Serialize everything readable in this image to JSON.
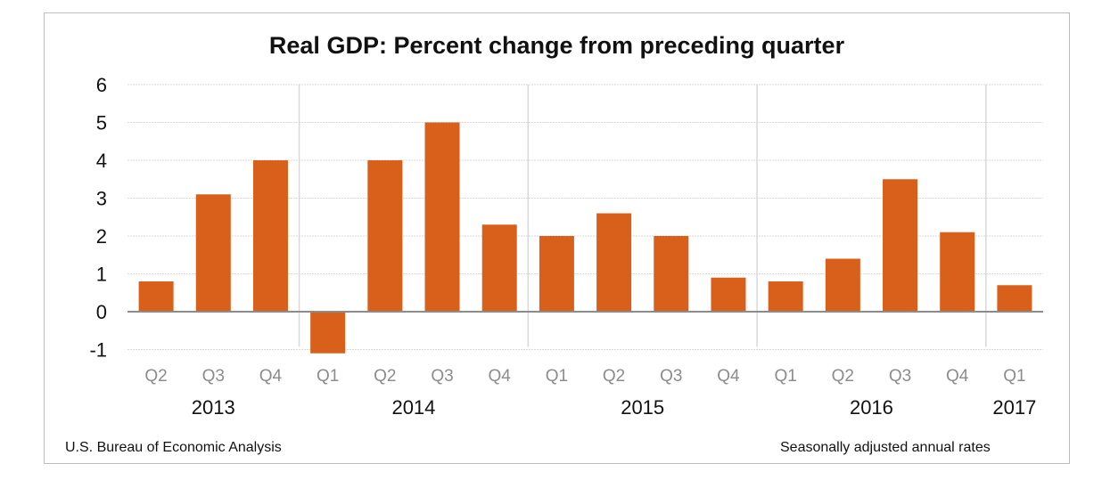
{
  "chart_data": {
    "type": "bar",
    "title": "Real GDP:  Percent change from preceding quarter",
    "categories": [
      "Q2",
      "Q3",
      "Q4",
      "Q1",
      "Q2",
      "Q3",
      "Q4",
      "Q1",
      "Q2",
      "Q3",
      "Q4",
      "Q1",
      "Q2",
      "Q3",
      "Q4",
      "Q1"
    ],
    "years": [
      {
        "label": "2013",
        "start": 0,
        "end": 2
      },
      {
        "label": "2014",
        "start": 3,
        "end": 6
      },
      {
        "label": "2015",
        "start": 7,
        "end": 10
      },
      {
        "label": "2016",
        "start": 11,
        "end": 14
      },
      {
        "label": "2017",
        "start": 15,
        "end": 15
      }
    ],
    "values": [
      0.8,
      3.1,
      4.0,
      -1.1,
      4.0,
      5.0,
      2.3,
      2.0,
      2.6,
      2.0,
      0.9,
      0.8,
      1.4,
      3.5,
      2.1,
      0.7
    ],
    "ylim": [
      -1,
      6
    ],
    "yticks": [
      -1,
      0,
      1,
      2,
      3,
      4,
      5,
      6
    ],
    "grid": true,
    "bar_color": "#d9601a",
    "xlabel": "",
    "ylabel": ""
  },
  "footer": {
    "source": "U.S. Bureau of Economic Analysis",
    "note": "Seasonally adjusted annual  rates"
  }
}
